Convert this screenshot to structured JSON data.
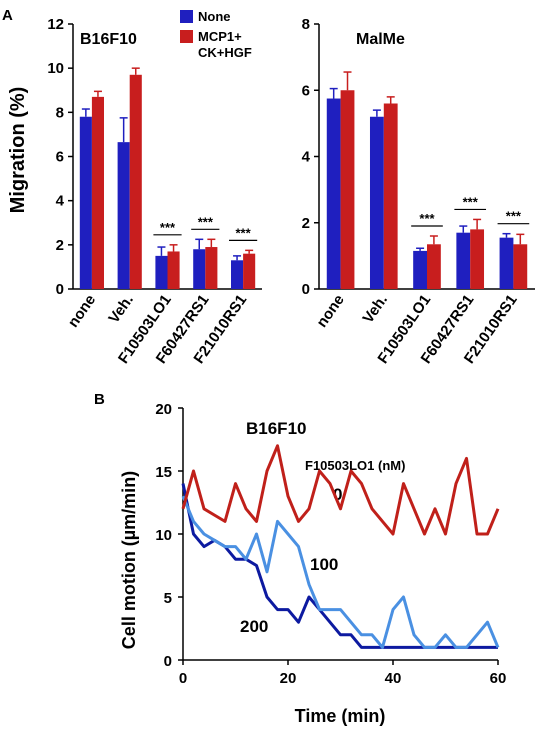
{
  "colors": {
    "none": "#1f1fbf",
    "mcp1": "#c81e1e",
    "dark_blue": "#0d1aa0",
    "light_blue": "#4a90e2",
    "red_line": "#c0201a"
  },
  "panel_labels": {
    "a": "A",
    "b": "B"
  },
  "chart_data": [
    {
      "type": "bar",
      "title": "B16F10",
      "ylabel": "Migration (%)",
      "xlabel": "",
      "ylim": [
        0,
        12
      ],
      "yticks": [
        "0",
        "2",
        "4",
        "6",
        "8",
        "10",
        "12"
      ],
      "categories": [
        "none",
        "Veh.",
        "F10503LO1",
        "F60427RS1",
        "F21010RS1"
      ],
      "series": [
        {
          "name": "None",
          "color": "#1f1fbf",
          "values": [
            7.8,
            6.65,
            1.5,
            1.8,
            1.3
          ],
          "errors": [
            0.35,
            1.1,
            0.4,
            0.45,
            0.2
          ]
        },
        {
          "name": "MCP1+ CK+HGF",
          "color": "#c81e1e",
          "values": [
            8.7,
            9.7,
            1.7,
            1.9,
            1.6
          ],
          "errors": [
            0.25,
            0.3,
            0.3,
            0.35,
            0.15
          ]
        }
      ],
      "significance": [
        "",
        "",
        "***",
        "***",
        "***"
      ],
      "legend": [
        "None",
        "MCP1+",
        "CK+HGF"
      ],
      "legend_position": "top-right"
    },
    {
      "type": "bar",
      "title": "MalMe",
      "ylabel": "",
      "xlabel": "",
      "ylim": [
        0,
        8
      ],
      "yticks": [
        "0",
        "2",
        "4",
        "6",
        "8"
      ],
      "categories": [
        "none",
        "Veh.",
        "F10503LO1",
        "F60427RS1",
        "F21010RS1"
      ],
      "series": [
        {
          "name": "None",
          "color": "#1f1fbf",
          "values": [
            5.75,
            5.2,
            1.15,
            1.7,
            1.55
          ],
          "errors": [
            0.3,
            0.2,
            0.08,
            0.2,
            0.12
          ]
        },
        {
          "name": "MCP1+ CK+HGF",
          "color": "#c81e1e",
          "values": [
            6.0,
            5.6,
            1.35,
            1.8,
            1.35
          ],
          "errors": [
            0.55,
            0.2,
            0.25,
            0.3,
            0.3
          ]
        }
      ],
      "significance": [
        "",
        "",
        "***",
        "***",
        "***"
      ]
    },
    {
      "type": "line",
      "title": "B16F10",
      "xlabel": "Time (min)",
      "ylabel": "Cell motion (µm/min)",
      "xlim": [
        0,
        60
      ],
      "ylim": [
        0,
        20
      ],
      "xticks": [
        "0",
        "20",
        "40",
        "60"
      ],
      "yticks": [
        "0",
        "5",
        "10",
        "15",
        "20"
      ],
      "legend_title": "F10503LO1 (nM)",
      "series": [
        {
          "name": "0",
          "color": "#c0201a",
          "x": [
            0,
            2,
            4,
            6,
            8,
            10,
            12,
            14,
            16,
            18,
            20,
            22,
            24,
            26,
            28,
            30,
            32,
            34,
            36,
            38,
            40,
            42,
            44,
            46,
            48,
            50,
            52,
            54,
            56,
            58,
            60
          ],
          "y": [
            12,
            15,
            12,
            11.5,
            11,
            14,
            12,
            11,
            15,
            17,
            13,
            11,
            12,
            15,
            14,
            12,
            15,
            14,
            12,
            11,
            10,
            14,
            12,
            10,
            12,
            10,
            14,
            16,
            10,
            10,
            12
          ]
        },
        {
          "name": "100",
          "color": "#4a90e2",
          "x": [
            0,
            2,
            4,
            6,
            8,
            10,
            12,
            14,
            16,
            18,
            20,
            22,
            24,
            26,
            28,
            30,
            32,
            34,
            36,
            38,
            40,
            42,
            44,
            46,
            48,
            50,
            52,
            54,
            56,
            58,
            60
          ],
          "y": [
            13,
            11,
            10,
            9.5,
            9,
            9,
            8,
            10,
            7,
            11,
            10,
            9,
            6,
            4,
            4,
            4,
            3,
            2,
            2,
            1,
            4,
            5,
            2,
            1,
            1,
            2,
            1,
            1,
            2,
            3,
            1
          ]
        },
        {
          "name": "200",
          "color": "#0d1aa0",
          "x": [
            0,
            2,
            4,
            6,
            8,
            10,
            12,
            14,
            16,
            18,
            20,
            22,
            24,
            26,
            28,
            30,
            32,
            34,
            36,
            38,
            40,
            42,
            44,
            46,
            48,
            50,
            52,
            54,
            56,
            58,
            60
          ],
          "y": [
            14,
            10,
            9,
            9.5,
            9,
            8,
            8,
            7.5,
            5,
            4,
            4,
            3,
            5,
            4,
            3,
            2,
            2,
            1,
            1,
            1,
            1,
            1,
            1,
            1,
            1,
            1,
            1,
            1,
            1,
            1,
            1
          ]
        }
      ]
    }
  ]
}
